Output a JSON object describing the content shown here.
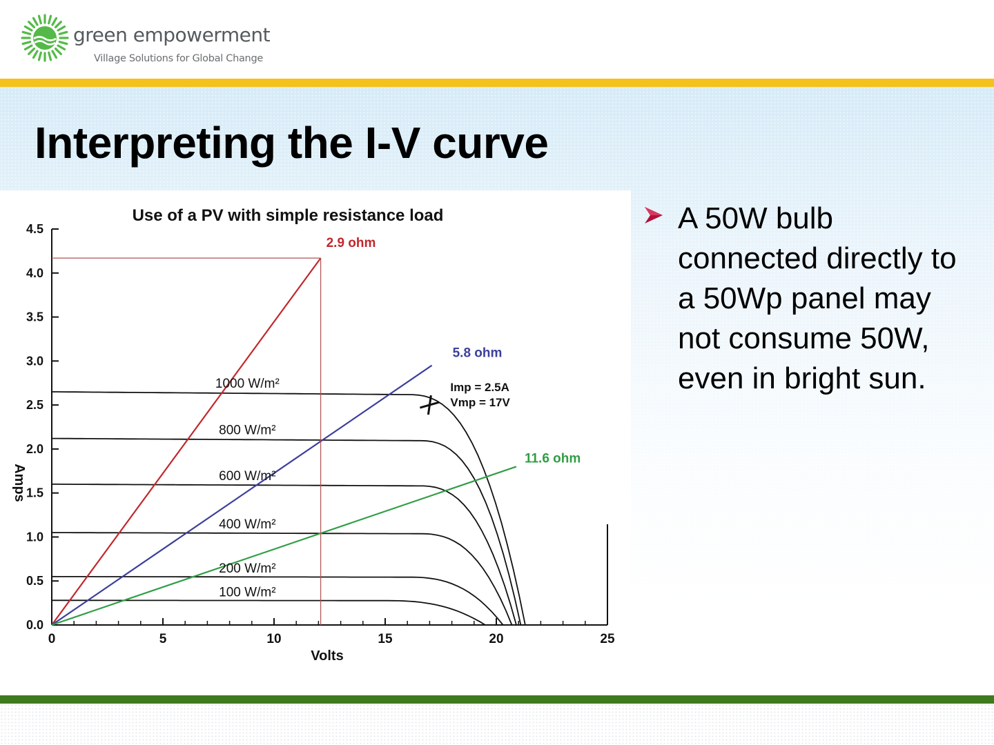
{
  "header": {
    "logo_name": "green empowerment",
    "logo_tagline": "Village Solutions for Global Change",
    "logo_icon": "sun-wave-logo-icon"
  },
  "colors": {
    "gold_bar": "#f5c21b",
    "green_bar": "#3f7a1e",
    "logo_green": "#54b948",
    "bullet_arrow": "#b0103a",
    "red_line": "#c0282c",
    "blue_line": "#3b3f9a",
    "green_line": "#2f9e44"
  },
  "slide": {
    "title": "Interpreting the I-V curve",
    "bullet_icon": "arrowhead-bullet-icon",
    "bullet_text": "A 50W bulb connected directly to a 50Wp panel may not consume 50W, even in bright sun."
  },
  "chart_data": {
    "type": "line",
    "title": "Use of a PV with simple resistance load",
    "xlabel": "Volts",
    "ylabel": "Amps",
    "xlim": [
      0,
      25
    ],
    "ylim": [
      0,
      4.5
    ],
    "x_ticks": [
      "0",
      "5",
      "10",
      "15",
      "20",
      "25"
    ],
    "y_ticks": [
      "0.0",
      "0.5",
      "1.0",
      "1.5",
      "2.0",
      "2.5",
      "3.0",
      "3.5",
      "4.0",
      "4.5"
    ],
    "grid": false,
    "iv_curves": [
      {
        "name": "1000 W/m²",
        "isc": 2.65,
        "voc": 21.3,
        "knee": 16.0
      },
      {
        "name": "800 W/m²",
        "isc": 2.12,
        "voc": 21.1,
        "knee": 16.5
      },
      {
        "name": "600 W/m²",
        "isc": 1.6,
        "voc": 20.9,
        "knee": 16.5
      },
      {
        "name": "400 W/m²",
        "isc": 1.05,
        "voc": 20.7,
        "knee": 16.5
      },
      {
        "name": "200 W/m²",
        "isc": 0.55,
        "voc": 20.3,
        "knee": 16.0
      },
      {
        "name": "100 W/m²",
        "isc": 0.28,
        "voc": 19.5,
        "knee": 15.0
      }
    ],
    "load_lines": [
      {
        "name": "2.9 ohm",
        "ohms": 2.9,
        "x_end": 12.1,
        "y_end": 4.17
      },
      {
        "name": "5.8 ohm",
        "ohms": 5.8,
        "x_end": 17.1,
        "y_end": 2.95
      },
      {
        "name": "11.6 ohm",
        "ohms": 11.6,
        "x_end": 20.9,
        "y_end": 1.8
      }
    ],
    "max_power_point": {
      "x": 17,
      "y": 2.5,
      "label_imp": "Imp = 2.5A",
      "label_vmp": "Vmp = 17V"
    }
  }
}
